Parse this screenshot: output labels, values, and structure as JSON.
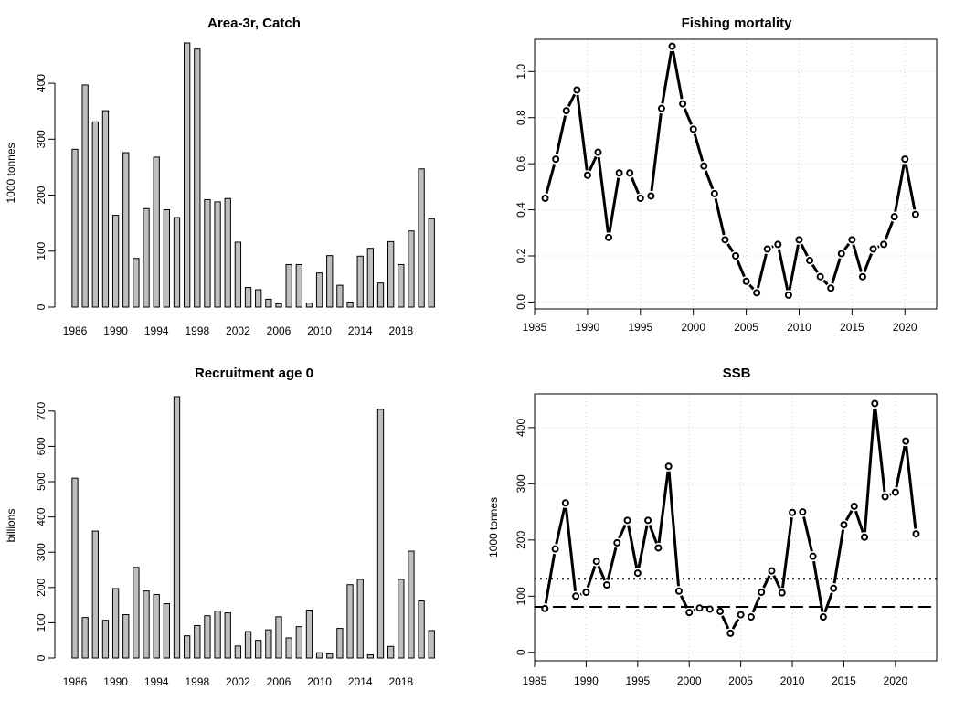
{
  "chart_data": [
    {
      "type": "bar",
      "title": "Area-3r,  Catch",
      "xlabel": "",
      "ylabel": "1000 tonnes",
      "categories": [
        "1986",
        "1987",
        "1988",
        "1989",
        "1990",
        "1991",
        "1992",
        "1993",
        "1994",
        "1995",
        "1996",
        "1997",
        "1998",
        "1999",
        "2000",
        "2001",
        "2002",
        "2003",
        "2004",
        "2005",
        "2006",
        "2007",
        "2008",
        "2009",
        "2010",
        "2011",
        "2012",
        "2013",
        "2014",
        "2015",
        "2016",
        "2017",
        "2018",
        "2019",
        "2020",
        "2021"
      ],
      "x_tick_labels": [
        "1986",
        "1990",
        "1994",
        "1998",
        "2002",
        "2006",
        "2010",
        "2014",
        "2018"
      ],
      "values": [
        282,
        397,
        331,
        351,
        164,
        276,
        87,
        176,
        268,
        174,
        160,
        472,
        461,
        192,
        188,
        194,
        116,
        35,
        31,
        14,
        6,
        76,
        76,
        7,
        61,
        92,
        39,
        9,
        91,
        105,
        43,
        117,
        76,
        136,
        247,
        158
      ],
      "yticks": [
        0,
        100,
        200,
        300,
        400
      ],
      "ylim": [
        0,
        472
      ],
      "color": "#bebebe"
    },
    {
      "type": "line",
      "title": "Fishing mortality",
      "xlabel": "",
      "ylabel": "",
      "x": [
        1986,
        1987,
        1988,
        1989,
        1990,
        1991,
        1992,
        1993,
        1994,
        1995,
        1996,
        1997,
        1998,
        1999,
        2000,
        2001,
        2002,
        2003,
        2004,
        2005,
        2006,
        2007,
        2008,
        2009,
        2010,
        2011,
        2012,
        2013,
        2014,
        2015,
        2016,
        2017,
        2018,
        2019,
        2020,
        2021
      ],
      "y": [
        0.45,
        0.62,
        0.83,
        0.92,
        0.55,
        0.65,
        0.28,
        0.56,
        0.56,
        0.45,
        0.46,
        0.84,
        1.11,
        0.86,
        0.75,
        0.59,
        0.47,
        0.27,
        0.2,
        0.09,
        0.04,
        0.23,
        0.25,
        0.03,
        0.27,
        0.18,
        0.11,
        0.06,
        0.21,
        0.27,
        0.11,
        0.23,
        0.25,
        0.37,
        0.62,
        0.38
      ],
      "xticks": [
        1985,
        1990,
        1995,
        2000,
        2005,
        2010,
        2015,
        2020
      ],
      "yticks": [
        0.0,
        0.2,
        0.4,
        0.6,
        0.8,
        1.0
      ],
      "ytick_labels": [
        "0.0",
        "0.2",
        "0.4",
        "0.6",
        "0.8",
        "1.0"
      ],
      "xlim": [
        1985,
        2023
      ],
      "ylim": [
        -0.03,
        1.14
      ],
      "grid": true
    },
    {
      "type": "bar",
      "title": "Recruitment age 0",
      "xlabel": "",
      "ylabel": "billions",
      "categories": [
        "1986",
        "1987",
        "1988",
        "1989",
        "1990",
        "1991",
        "1992",
        "1993",
        "1994",
        "1995",
        "1996",
        "1997",
        "1998",
        "1999",
        "2000",
        "2001",
        "2002",
        "2003",
        "2004",
        "2005",
        "2006",
        "2007",
        "2008",
        "2009",
        "2010",
        "2011",
        "2012",
        "2013",
        "2014",
        "2015",
        "2016",
        "2017",
        "2018",
        "2019",
        "2020",
        "2021"
      ],
      "x_tick_labels": [
        "1986",
        "1990",
        "1994",
        "1998",
        "2002",
        "2006",
        "2010",
        "2014",
        "2018"
      ],
      "values": [
        510,
        115,
        360,
        107,
        197,
        123,
        257,
        190,
        180,
        154,
        741,
        63,
        92,
        120,
        133,
        128,
        34,
        75,
        50,
        80,
        117,
        57,
        89,
        136,
        15,
        12,
        84,
        208,
        223,
        9,
        705,
        33,
        223,
        303,
        162,
        78
      ],
      "yticks": [
        0,
        100,
        200,
        300,
        400,
        500,
        600,
        700
      ],
      "ylim": [
        0,
        741
      ],
      "color": "#bebebe"
    },
    {
      "type": "line",
      "title": "SSB",
      "xlabel": "",
      "ylabel": "1000 tonnes",
      "x": [
        1986,
        1987,
        1988,
        1989,
        1990,
        1991,
        1992,
        1993,
        1994,
        1995,
        1996,
        1997,
        1998,
        1999,
        2000,
        2001,
        2002,
        2003,
        2004,
        2005,
        2006,
        2007,
        2008,
        2009,
        2010,
        2011,
        2012,
        2013,
        2014,
        2015,
        2016,
        2017,
        2018,
        2019,
        2020,
        2021,
        2022
      ],
      "y": [
        78,
        184,
        266,
        100,
        107,
        162,
        120,
        195,
        235,
        141,
        235,
        186,
        331,
        109,
        71,
        79,
        77,
        73,
        34,
        67,
        63,
        107,
        145,
        106,
        249,
        250,
        171,
        63,
        114,
        227,
        260,
        205,
        443,
        277,
        285,
        376,
        211
      ],
      "reference_lines": [
        {
          "style": "dotted",
          "value": 131
        },
        {
          "style": "dashed",
          "value": 81
        }
      ],
      "xticks": [
        1985,
        1990,
        1995,
        2000,
        2005,
        2010,
        2015,
        2020
      ],
      "yticks": [
        0,
        100,
        200,
        300,
        400
      ],
      "xlim": [
        1985,
        2024
      ],
      "ylim": [
        -15,
        460
      ],
      "grid": true
    }
  ]
}
